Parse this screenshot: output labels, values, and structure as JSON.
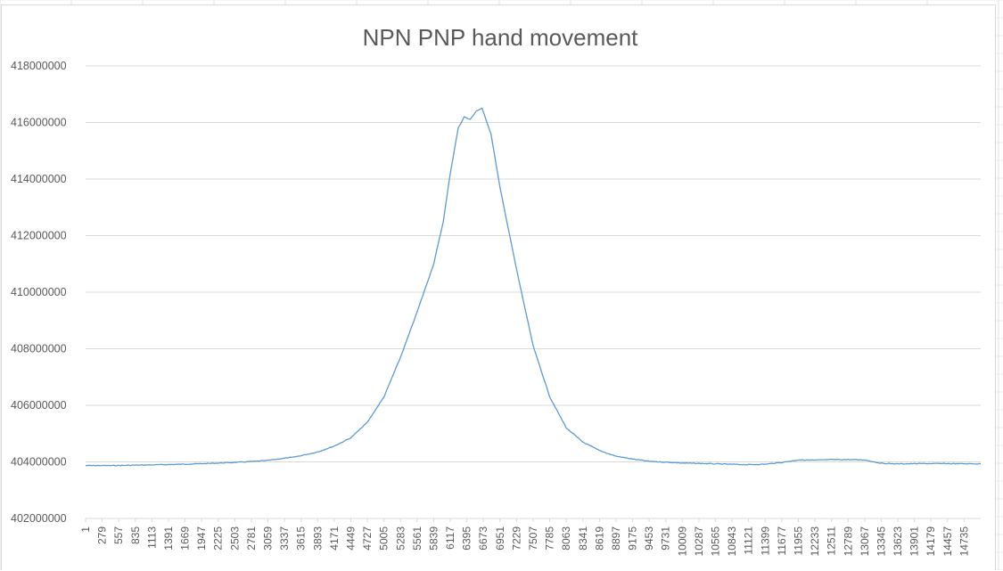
{
  "chart_data": {
    "type": "line",
    "title": "NPN PNP hand movement",
    "xlabel": "",
    "ylabel": "",
    "ylim": [
      402000000,
      418000000
    ],
    "yticks": [
      "402000000",
      "404000000",
      "406000000",
      "408000000",
      "410000000",
      "412000000",
      "414000000",
      "416000000",
      "418000000"
    ],
    "xlim": [
      1,
      15013
    ],
    "xticks": [
      "1",
      "279",
      "557",
      "835",
      "1113",
      "1391",
      "1669",
      "1947",
      "2225",
      "2503",
      "2781",
      "3059",
      "3337",
      "3615",
      "3893",
      "4171",
      "4449",
      "4727",
      "5005",
      "5283",
      "5561",
      "5839",
      "6117",
      "6395",
      "6673",
      "6951",
      "7229",
      "7507",
      "7785",
      "8063",
      "8341",
      "8619",
      "8897",
      "9175",
      "9453",
      "9731",
      "10009",
      "10287",
      "10565",
      "10843",
      "11121",
      "11399",
      "11677",
      "11955",
      "12233",
      "12511",
      "12789",
      "13067",
      "13345",
      "13623",
      "13901",
      "14179",
      "14457",
      "14735"
    ],
    "grid": true,
    "legend": "none",
    "series": [
      {
        "color": "#5b9bd5",
        "points": [
          [
            1,
            403870000
          ],
          [
            500,
            403870000
          ],
          [
            1000,
            403890000
          ],
          [
            1500,
            403910000
          ],
          [
            2000,
            403940000
          ],
          [
            2500,
            403980000
          ],
          [
            3000,
            404040000
          ],
          [
            3500,
            404170000
          ],
          [
            3893,
            404350000
          ],
          [
            4171,
            404560000
          ],
          [
            4449,
            404850000
          ],
          [
            4727,
            405400000
          ],
          [
            5005,
            406300000
          ],
          [
            5283,
            407700000
          ],
          [
            5561,
            409300000
          ],
          [
            5839,
            411000000
          ],
          [
            6000,
            412500000
          ],
          [
            6117,
            414200000
          ],
          [
            6250,
            415800000
          ],
          [
            6350,
            416200000
          ],
          [
            6450,
            416100000
          ],
          [
            6550,
            416400000
          ],
          [
            6650,
            416500000
          ],
          [
            6700,
            416200000
          ],
          [
            6800,
            415600000
          ],
          [
            6951,
            413700000
          ],
          [
            7229,
            410800000
          ],
          [
            7507,
            408100000
          ],
          [
            7785,
            406300000
          ],
          [
            8063,
            405200000
          ],
          [
            8341,
            404700000
          ],
          [
            8619,
            404400000
          ],
          [
            8897,
            404200000
          ],
          [
            9175,
            404100000
          ],
          [
            9453,
            404020000
          ],
          [
            9731,
            403990000
          ],
          [
            10009,
            403960000
          ],
          [
            10565,
            403930000
          ],
          [
            11121,
            403900000
          ],
          [
            11399,
            403920000
          ],
          [
            11677,
            403980000
          ],
          [
            11955,
            404070000
          ],
          [
            12233,
            404060000
          ],
          [
            12511,
            404080000
          ],
          [
            12789,
            404080000
          ],
          [
            13067,
            404070000
          ],
          [
            13345,
            403950000
          ],
          [
            13623,
            403930000
          ],
          [
            14000,
            403940000
          ],
          [
            14457,
            403940000
          ],
          [
            15013,
            403930000
          ]
        ]
      }
    ]
  }
}
